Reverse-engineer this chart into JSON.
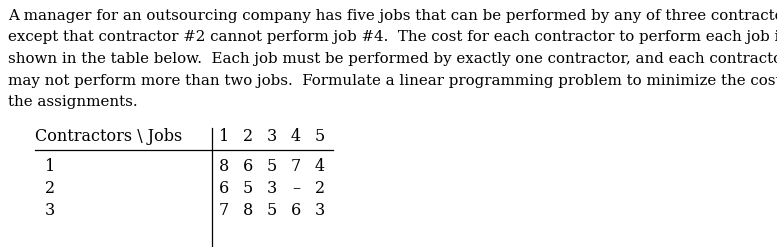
{
  "para_lines": [
    "A manager for an outsourcing company has five jobs that can be performed by any of three contractors,",
    "except that contractor #2 cannot perform job #4.  The cost for each contractor to perform each job is",
    "shown in the table below.  Each job must be performed by exactly one contractor, and each contractor",
    "may not perform more than two jobs.  Formulate a linear programming problem to minimize the cost of",
    "the assignments."
  ],
  "col_header": "Contractors \\ Jobs",
  "col_jobs": [
    "1",
    "2",
    "3",
    "4",
    "5"
  ],
  "row_labels": [
    "1",
    "2",
    "3"
  ],
  "table_data": [
    [
      "8",
      "6",
      "5",
      "7",
      "4"
    ],
    [
      "6",
      "5",
      "3",
      "–",
      "2"
    ],
    [
      "7",
      "8",
      "5",
      "6",
      "3"
    ]
  ],
  "bg_color": "#ffffff",
  "text_color": "#000000",
  "font_size_para": 10.8,
  "font_size_table": 11.5,
  "fig_width": 7.77,
  "fig_height": 2.47,
  "dpi": 100
}
